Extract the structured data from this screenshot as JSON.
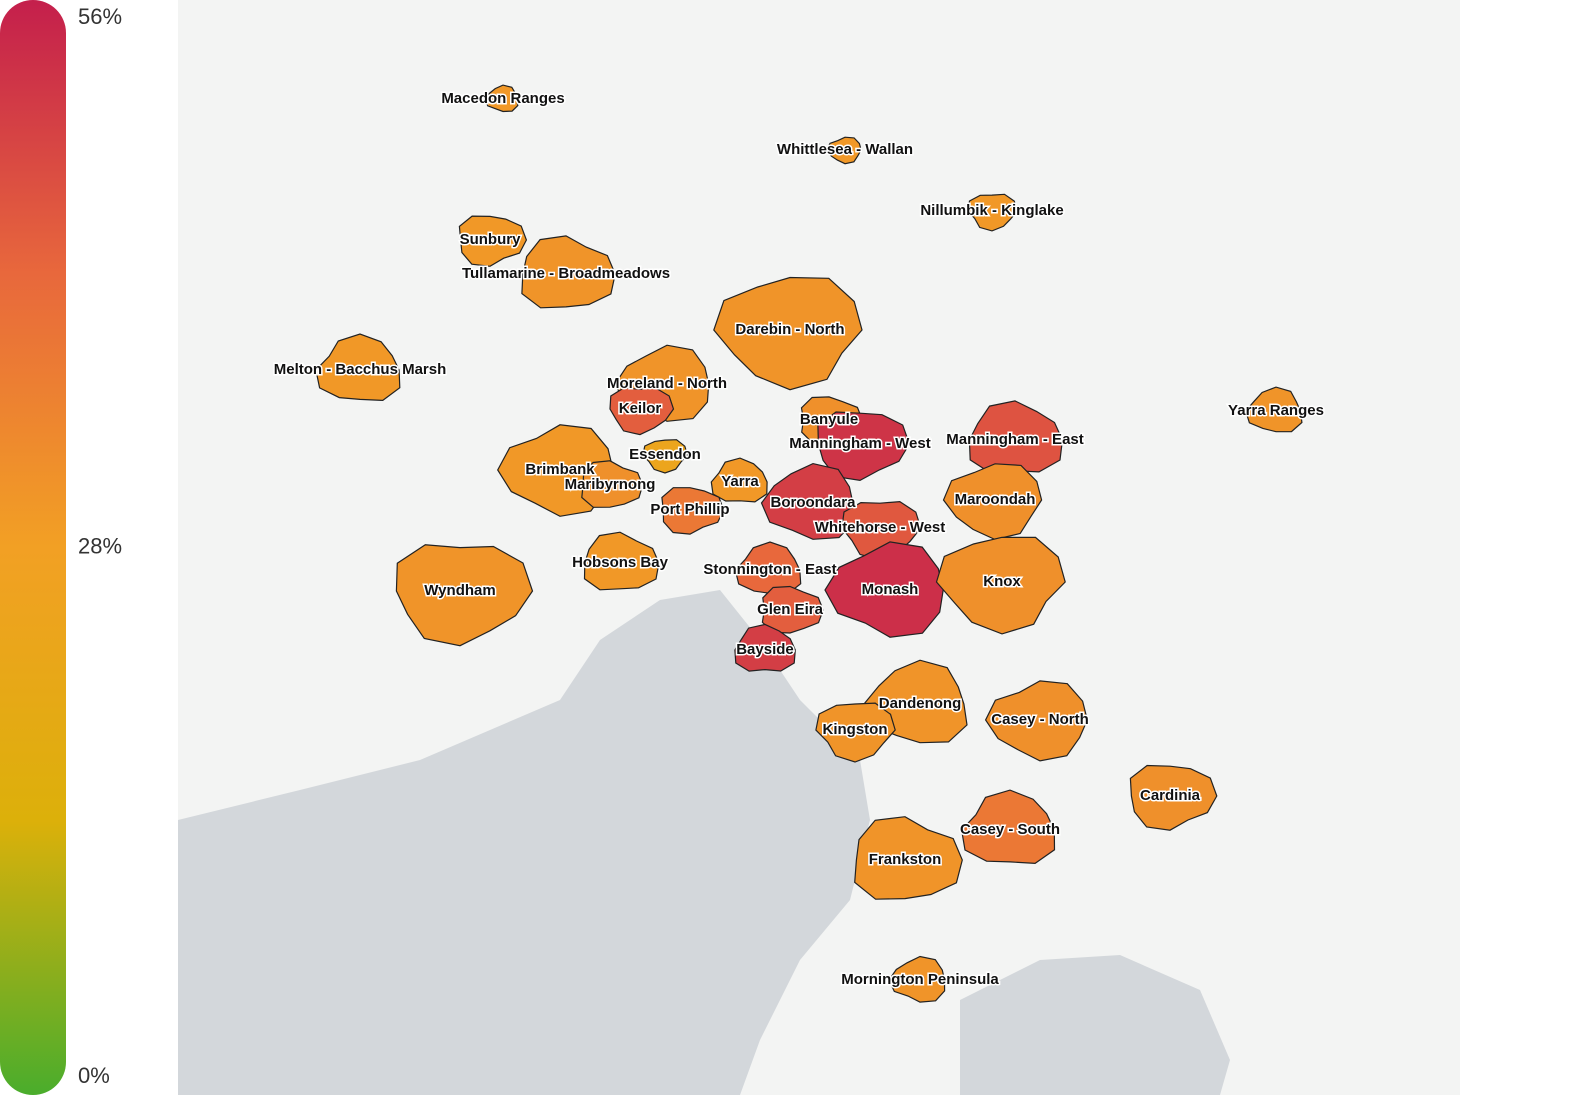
{
  "chart_data": {
    "type": "choropleth",
    "categories": [
      "Macedon Ranges",
      "Whittlesea - Wallan",
      "Nillumbik - Kinglake",
      "Sunbury",
      "Tullamarine - Broadmeadows",
      "Melton - Bacchus Marsh",
      "Moreland - North",
      "Darebin - North",
      "Keilor",
      "Banyule",
      "Manningham - East",
      "Yarra Ranges",
      "Brimbank",
      "Essendon",
      "Manningham - West",
      "Maribyrnong",
      "Yarra",
      "Boroondara",
      "Maroondah",
      "Whitehorse - West",
      "Port Phillip",
      "Hobsons Bay",
      "Stonnington - East",
      "Monash",
      "Knox",
      "Wyndham",
      "Glen Eira",
      "Bayside",
      "Dandenong",
      "Casey - North",
      "Kingston",
      "Cardinia",
      "Frankston",
      "Casey - South",
      "Mornington Peninsula"
    ],
    "values": [
      30,
      30,
      30,
      30,
      31,
      30,
      31,
      31,
      44,
      32,
      46,
      31,
      30,
      24,
      52,
      32,
      30,
      50,
      32,
      45,
      38,
      30,
      42,
      53,
      32,
      31,
      44,
      50,
      31,
      32,
      31,
      32,
      31,
      38,
      31
    ],
    "colors": [
      "#4aad2c",
      "#dcb00a",
      "#f2a024",
      "#e8683c",
      "#c41f4c"
    ],
    "ylim": [
      0,
      56
    ],
    "yticks": [
      {
        "value": 56,
        "label": "56%"
      },
      {
        "value": 28,
        "label": "28%"
      },
      {
        "value": 0,
        "label": "0%"
      }
    ]
  }
}
